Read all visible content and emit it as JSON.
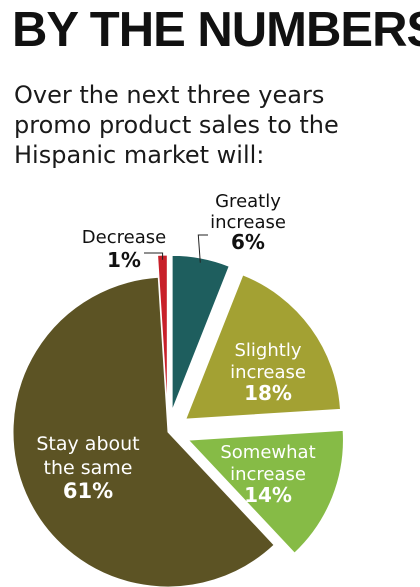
{
  "header": {
    "title": "BY THE NUMBERS",
    "subtitle_lines": [
      "Over the next three years",
      "promo product sales to the",
      "Hispanic market will:"
    ]
  },
  "chart_data": {
    "type": "pie",
    "title": "BY THE NUMBERS",
    "subtitle": "Over the next three years promo product sales to the Hispanic market will:",
    "slices": [
      {
        "label": "Greatly increase",
        "label_lines": [
          "Greatly",
          "increase"
        ],
        "value": 6,
        "value_label": "6%",
        "color": "#1e5e5e",
        "exploded": true,
        "label_position": "outside",
        "text_color": "#111111"
      },
      {
        "label": "Slightly increase",
        "label_lines": [
          "Slightly",
          "increase"
        ],
        "value": 18,
        "value_label": "18%",
        "color": "#a3a133",
        "exploded": true,
        "label_position": "inside",
        "text_color": "#ffffff"
      },
      {
        "label": "Somewhat increase",
        "label_lines": [
          "Somewhat",
          "increase"
        ],
        "value": 14,
        "value_label": "14%",
        "color": "#86bb46",
        "exploded": true,
        "label_position": "inside",
        "text_color": "#ffffff"
      },
      {
        "label": "Stay about the same",
        "label_lines": [
          "Stay about",
          "the same"
        ],
        "value": 61,
        "value_label": "61%",
        "color": "#5c5324",
        "exploded": false,
        "label_position": "inside",
        "text_color": "#ffffff"
      },
      {
        "label": "Decrease",
        "label_lines": [
          "Decrease"
        ],
        "value": 1,
        "value_label": "1%",
        "color": "#c8202a",
        "exploded": true,
        "label_position": "outside",
        "text_color": "#111111"
      }
    ]
  }
}
